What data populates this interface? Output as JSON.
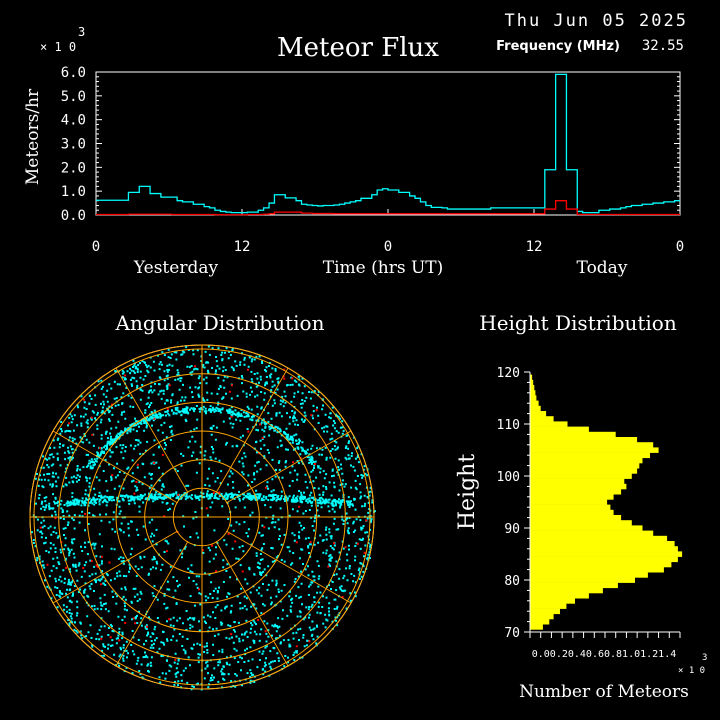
{
  "header": {
    "date": "Thu Jun 05 2025",
    "title": "Meteor Flux",
    "freq_label": "Frequency (MHz)",
    "freq_value": "32.55"
  },
  "colors": {
    "background": "#000000",
    "axis": "#ffffff",
    "flux_total": "#00ffff",
    "flux_subset": "#ff0000",
    "angular_points": "#00ffff",
    "angular_highlight": "#ff0000",
    "angular_rings": "#ffa500",
    "height_bars": "#ffff00"
  },
  "chart_data": [
    {
      "type": "line",
      "title": "Meteor Flux",
      "ylabel": "Meteors/hr",
      "xlabel": "Time (hrs UT)",
      "y_multiplier": "x10^3",
      "y_mult_base": "× 1 0",
      "y_mult_exp": "3",
      "ylim": [
        0,
        6.0
      ],
      "y_ticks": [
        "6.0",
        "5.0",
        "4.0",
        "3.0",
        "2.0",
        "1.0",
        "0.0"
      ],
      "x_ticks": [
        "0",
        "12",
        "0",
        "12",
        "0"
      ],
      "x_range_hours": [
        0,
        48
      ],
      "day_labels": {
        "left": "Yesterday",
        "right": "Today"
      },
      "step_style": "histogram",
      "series": [
        {
          "color": "#00ffff",
          "values": [
            0.62,
            0.62,
            0.62,
            0.62,
            0.62,
            0.62,
            0.95,
            0.95,
            1.2,
            1.2,
            0.9,
            0.9,
            0.75,
            0.75,
            0.75,
            0.6,
            0.55,
            0.55,
            0.45,
            0.45,
            0.35,
            0.3,
            0.2,
            0.15,
            0.12,
            0.1,
            0.1,
            0.1,
            0.12,
            0.12,
            0.2,
            0.3,
            0.5,
            0.85,
            0.85,
            0.72,
            0.72,
            0.6,
            0.45,
            0.42,
            0.4,
            0.38,
            0.4,
            0.4,
            0.42,
            0.45,
            0.5,
            0.55,
            0.6,
            0.7,
            0.7,
            0.85,
            1.05,
            1.1,
            1.05,
            1.05,
            0.95,
            0.95,
            0.8,
            0.7,
            0.55,
            0.4,
            0.32,
            0.32,
            0.3,
            0.25,
            0.25,
            0.25,
            0.25,
            0.25,
            0.25,
            0.25,
            0.25,
            0.3,
            0.3,
            0.3,
            0.3,
            0.3,
            0.3,
            0.3,
            0.3,
            0.3,
            0.3,
            1.9,
            1.9,
            5.9,
            5.9,
            1.9,
            1.9,
            0.15,
            0.1,
            0.1,
            0.1,
            0.2,
            0.2,
            0.25,
            0.25,
            0.3,
            0.35,
            0.4,
            0.4,
            0.45,
            0.45,
            0.5,
            0.5,
            0.55,
            0.55,
            0.6
          ]
        },
        {
          "color": "#ff0000",
          "values": [
            0.02,
            0.02,
            0.02,
            0.02,
            0.02,
            0.02,
            0.03,
            0.03,
            0.03,
            0.03,
            0.03,
            0.03,
            0.03,
            0.03,
            0.02,
            0.02,
            0.02,
            0.02,
            0.02,
            0.02,
            0.02,
            0.02,
            0.01,
            0.01,
            0.01,
            0.01,
            0.01,
            0.01,
            0.02,
            0.02,
            0.02,
            0.03,
            0.05,
            0.12,
            0.12,
            0.12,
            0.12,
            0.12,
            0.08,
            0.08,
            0.06,
            0.06,
            0.06,
            0.06,
            0.05,
            0.05,
            0.05,
            0.05,
            0.05,
            0.05,
            0.05,
            0.05,
            0.05,
            0.05,
            0.05,
            0.05,
            0.05,
            0.05,
            0.05,
            0.05,
            0.05,
            0.05,
            0.05,
            0.05,
            0.05,
            0.05,
            0.05,
            0.05,
            0.05,
            0.05,
            0.05,
            0.05,
            0.05,
            0.05,
            0.05,
            0.05,
            0.05,
            0.05,
            0.05,
            0.05,
            0.05,
            0.05,
            0.05,
            0.25,
            0.25,
            0.6,
            0.6,
            0.25,
            0.25,
            0.02,
            0.02,
            0.02,
            0.02,
            0.02,
            0.02,
            0.02,
            0.02,
            0.02,
            0.02,
            0.02,
            0.02,
            0.02,
            0.02,
            0.02,
            0.02,
            0.02,
            0.02,
            0.02
          ]
        }
      ]
    },
    {
      "type": "scatter",
      "title": "Angular Distribution",
      "projection": "polar sky map",
      "rings": 6,
      "spokes": 12
    },
    {
      "type": "bar",
      "orientation": "horizontal",
      "title": "Height Distribution",
      "ylabel": "Height",
      "xlabel": "Number of Meteors",
      "x_multiplier": "x10^3",
      "x_mult_base": "× 1 0",
      "x_mult_exp": "3",
      "ylim": [
        70,
        120
      ],
      "xlim": [
        0,
        1.4
      ],
      "y_ticks": [
        "120",
        "110",
        "100",
        "90",
        "80",
        "70"
      ],
      "x_ticks_text": "0.00.20.40.60.81.01.21.4",
      "heights": [
        71,
        72,
        73,
        74,
        75,
        76,
        77,
        78,
        79,
        80,
        81,
        82,
        83,
        84,
        85,
        86,
        87,
        88,
        89,
        90,
        91,
        92,
        93,
        94,
        95,
        96,
        97,
        98,
        99,
        100,
        101,
        102,
        103,
        104,
        105,
        106,
        107,
        108,
        109,
        110,
        111,
        112,
        113,
        114,
        115,
        116,
        117,
        118,
        119
      ],
      "values": [
        0.12,
        0.18,
        0.22,
        0.28,
        0.34,
        0.42,
        0.55,
        0.68,
        0.82,
        0.98,
        1.1,
        1.25,
        1.32,
        1.38,
        1.42,
        1.38,
        1.35,
        1.28,
        1.15,
        1.05,
        0.95,
        0.85,
        0.78,
        0.75,
        0.72,
        0.78,
        0.85,
        0.9,
        0.88,
        0.95,
        1.0,
        1.02,
        1.05,
        1.12,
        1.2,
        1.15,
        1.0,
        0.8,
        0.55,
        0.35,
        0.22,
        0.15,
        0.1,
        0.08,
        0.06,
        0.05,
        0.04,
        0.03,
        0.02
      ]
    }
  ],
  "angular_title": "Angular Distribution",
  "height_title": "Height Distribution"
}
